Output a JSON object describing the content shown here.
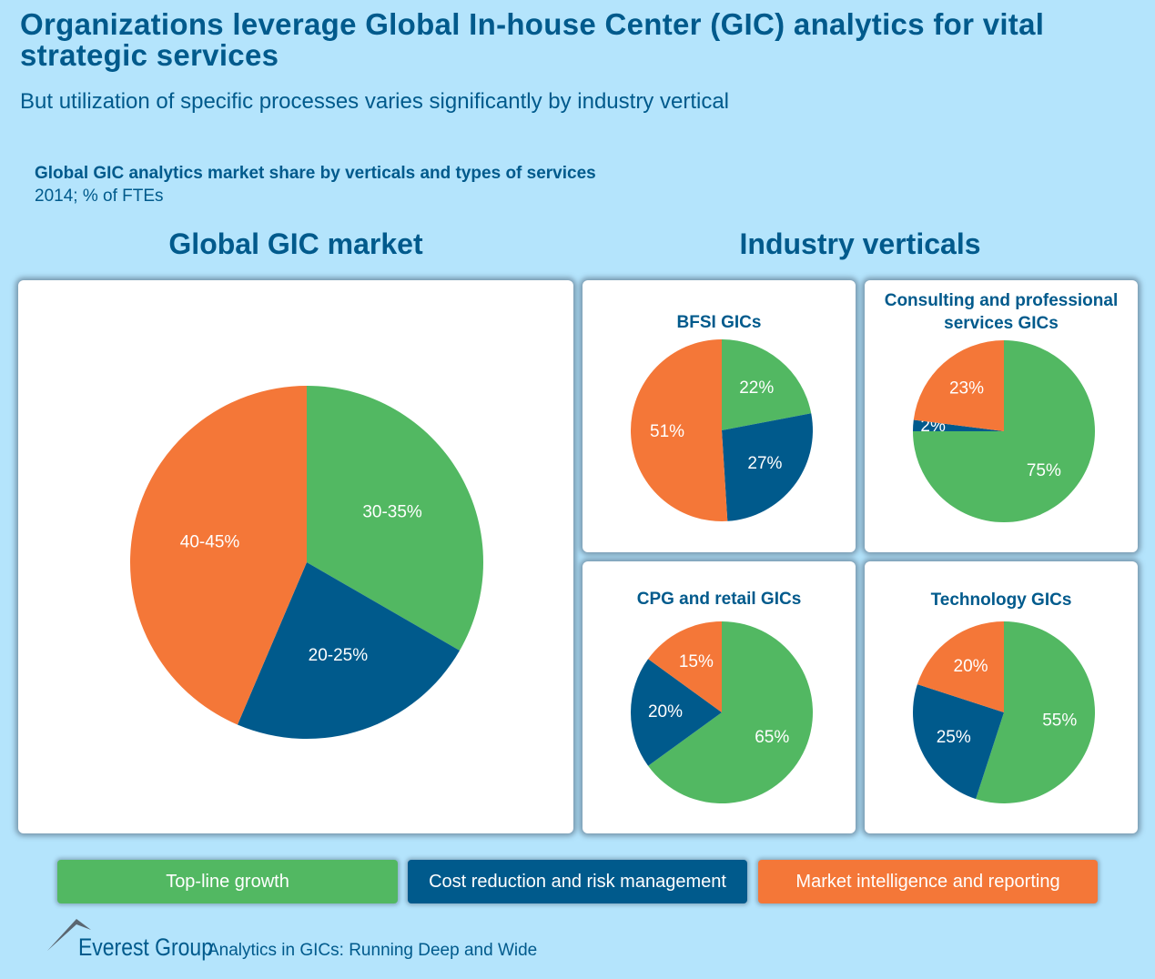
{
  "title": "Organizations leverage Global In-house Center (GIC) analytics for vital strategic services",
  "subtitle": "But utilization of specific processes varies significantly by industry vertical",
  "chart_title": "Global GIC analytics market share by verticals and types of services",
  "chart_subtitle": "2014; % of FTEs",
  "sections": {
    "left": "Global GIC market",
    "right": "Industry verticals"
  },
  "colors": {
    "Top-line growth": "#52b862",
    "Cost reduction and risk management": "#005a8c",
    "Market intelligence and reporting": "#f47738"
  },
  "legend": [
    "Top-line growth",
    "Cost reduction and risk management",
    "Market intelligence and reporting"
  ],
  "chart_data": [
    {
      "type": "pie",
      "title": "Global GIC market",
      "categories": [
        "Top-line growth",
        "Cost reduction and risk management",
        "Market intelligence and reporting"
      ],
      "values": [
        32.5,
        22.5,
        42.5
      ],
      "labels": [
        "30-35%",
        "20-25%",
        "40-45%"
      ]
    },
    {
      "type": "pie",
      "title": "BFSI GICs",
      "categories": [
        "Top-line growth",
        "Cost reduction and risk management",
        "Market intelligence and reporting"
      ],
      "values": [
        22,
        27,
        51
      ],
      "labels": [
        "22%",
        "27%",
        "51%"
      ]
    },
    {
      "type": "pie",
      "title": "Consulting and professional services GICs",
      "categories": [
        "Top-line growth",
        "Cost reduction and risk management",
        "Market intelligence and reporting"
      ],
      "values": [
        75,
        2,
        23
      ],
      "labels": [
        "75%",
        "2%",
        "23%"
      ]
    },
    {
      "type": "pie",
      "title": "CPG and retail GICs",
      "categories": [
        "Top-line growth",
        "Cost reduction and risk management",
        "Market intelligence and reporting"
      ],
      "values": [
        65,
        20,
        15
      ],
      "labels": [
        "65%",
        "20%",
        "15%"
      ]
    },
    {
      "type": "pie",
      "title": "Technology GICs",
      "categories": [
        "Top-line growth",
        "Cost reduction and risk management",
        "Market intelligence and reporting"
      ],
      "values": [
        55,
        25,
        20
      ],
      "labels": [
        "55%",
        "25%",
        "20%"
      ]
    }
  ],
  "footer": {
    "brand": "Everest Group",
    "report": "Analytics in GICs: Running Deep and Wide"
  }
}
